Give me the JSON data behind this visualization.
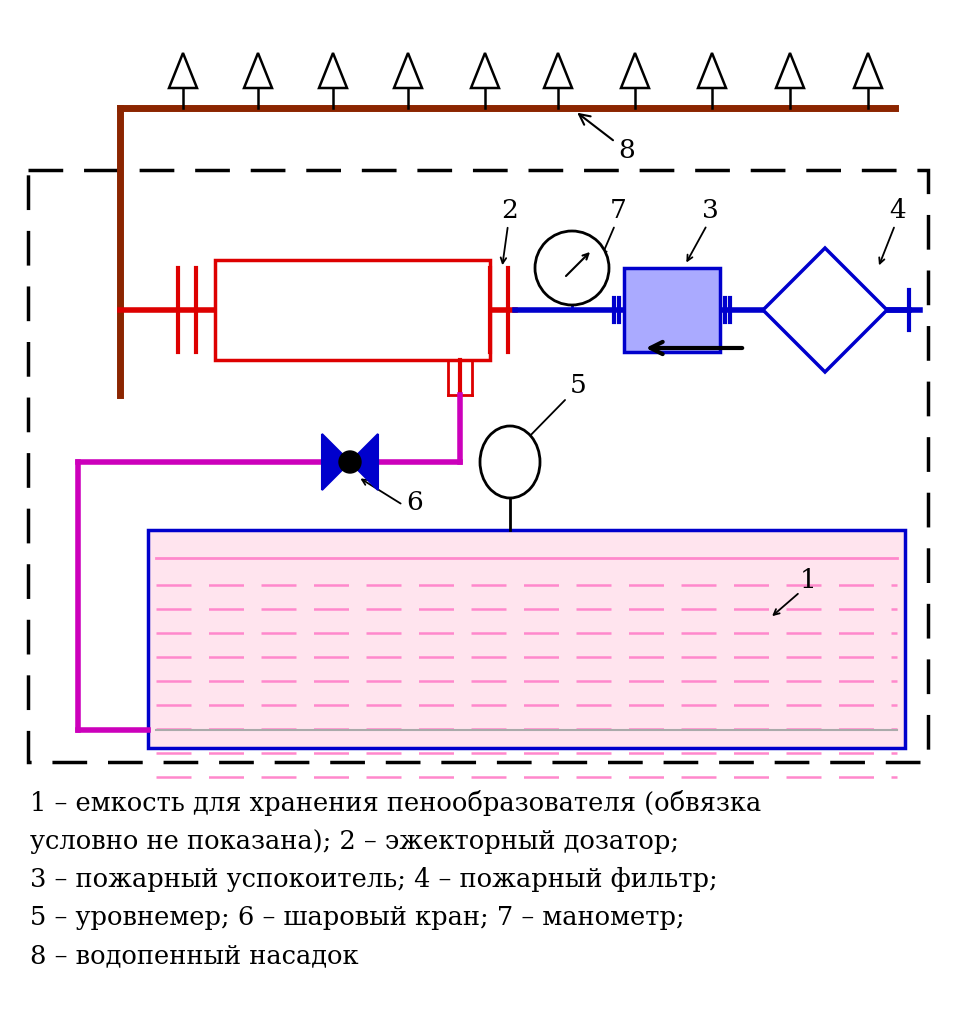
{
  "bg_color": "#ffffff",
  "brown": "#8B2500",
  "red": "#DD0000",
  "blue": "#0000CC",
  "magenta": "#CC00BB",
  "pink": "#FF88CC",
  "black": "#000000",
  "legend": "1 – емкость для хранения пенообразователя (обвязка\nусловно не показана); 2 – эжекторный дозатор;\n3 – пожарный успокоитель; 4 – пожарный фильтр;\n5 – уровнемер; 6 – шаровый кран; 7 – манометр;\n8 – водопенный насадок"
}
